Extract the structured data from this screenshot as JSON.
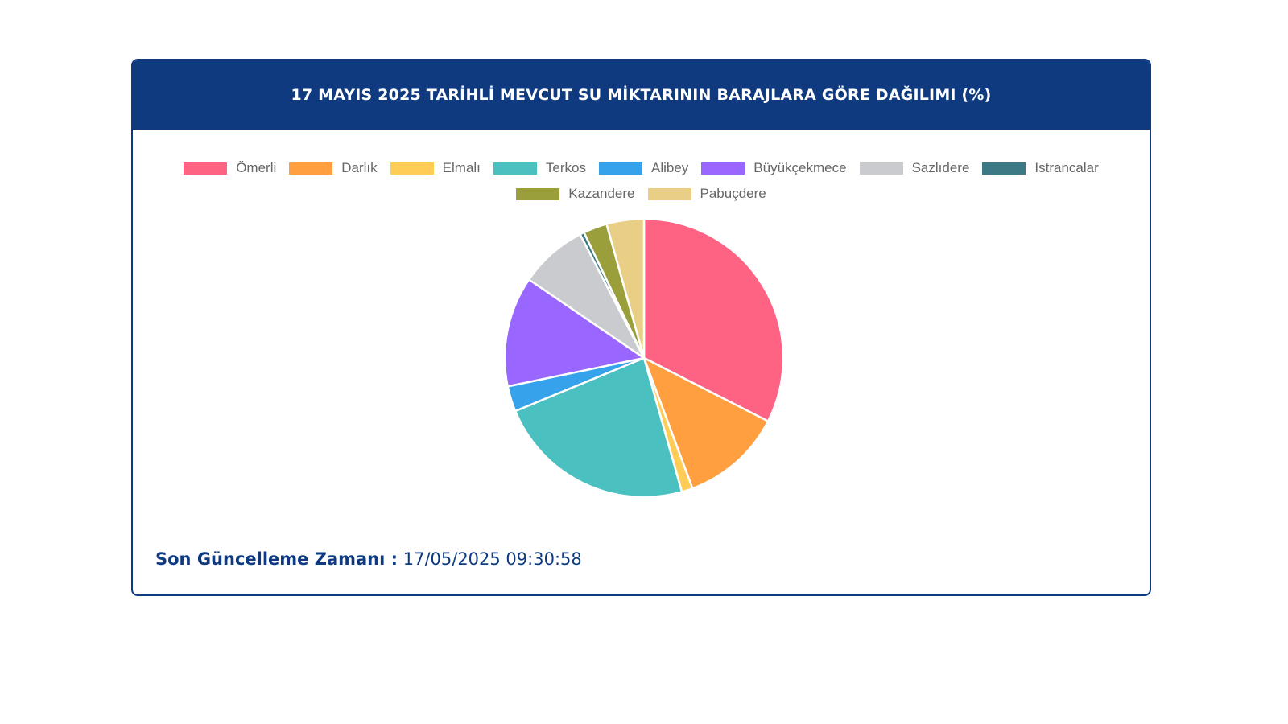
{
  "header": {
    "title": "17 MAYIS 2025 TARİHLİ MEVCUT SU MİKTARININ BARAJLARA GÖRE DAĞILIMI (%)"
  },
  "footer": {
    "updated_label": "Son Güncelleme Zamanı :",
    "updated_value": "17/05/2025 09:30:58"
  },
  "colors": {
    "header_bg": "#0f3a80",
    "slice_border": "#ffffff"
  },
  "chart_data": {
    "type": "pie",
    "title": "17 MAYIS 2025 TARİHLİ MEVCUT SU MİKTARININ BARAJLARA GÖRE DAĞILIMI (%)",
    "legend_position": "top",
    "slices": [
      {
        "label": "Ömerli",
        "value": 33.0,
        "color": "#ff6384"
      },
      {
        "label": "Darlık",
        "value": 12.0,
        "color": "#ff9f40"
      },
      {
        "label": "Elmalı",
        "value": 1.3,
        "color": "#ffcd56"
      },
      {
        "label": "Terkos",
        "value": 23.5,
        "color": "#4bc0c0"
      },
      {
        "label": "Alibey",
        "value": 3.0,
        "color": "#36a2eb"
      },
      {
        "label": "Büyükçekmece",
        "value": 13.0,
        "color": "#9966ff"
      },
      {
        "label": "Sazlıdere",
        "value": 8.0,
        "color": "#c9cbcf"
      },
      {
        "label": "Istrancalar",
        "value": 0.5,
        "color": "#3b7a84"
      },
      {
        "label": "Kazandere",
        "value": 2.8,
        "color": "#9a9f3c"
      },
      {
        "label": "Pabuçdere",
        "value": 4.4,
        "color": "#e9cf85"
      }
    ]
  }
}
